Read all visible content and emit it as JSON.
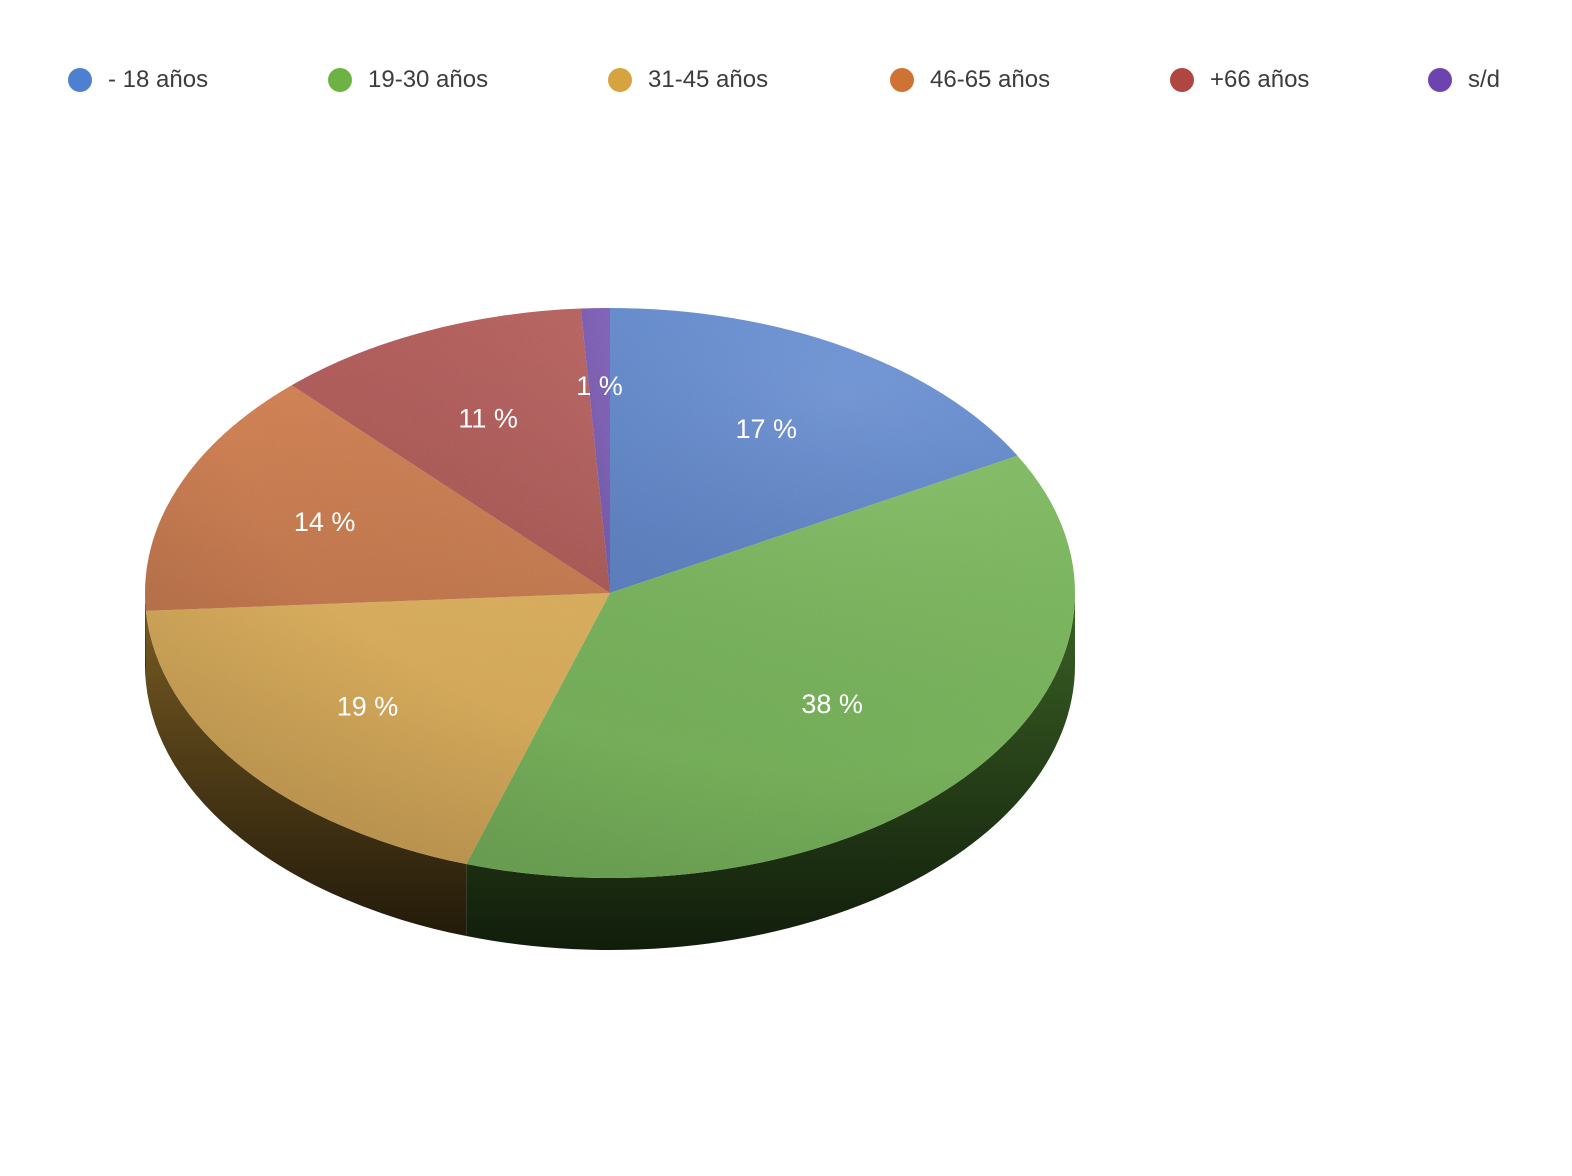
{
  "chart_data": {
    "type": "pie",
    "style": "3d",
    "legend_position": "top",
    "categories": [
      "- 18 años",
      "19-30 años",
      "31-45 años",
      "46-65 años",
      "+66 años",
      "s/d"
    ],
    "values": [
      17,
      38,
      19,
      14,
      11,
      1
    ],
    "data_labels": [
      "17 %",
      "38 %",
      "19 %",
      "14 %",
      "11 %",
      "1 %"
    ],
    "colors": [
      "#4d80d0",
      "#6cb344",
      "#d6a43e",
      "#cf7334",
      "#b04642",
      "#6d43b0"
    ]
  }
}
